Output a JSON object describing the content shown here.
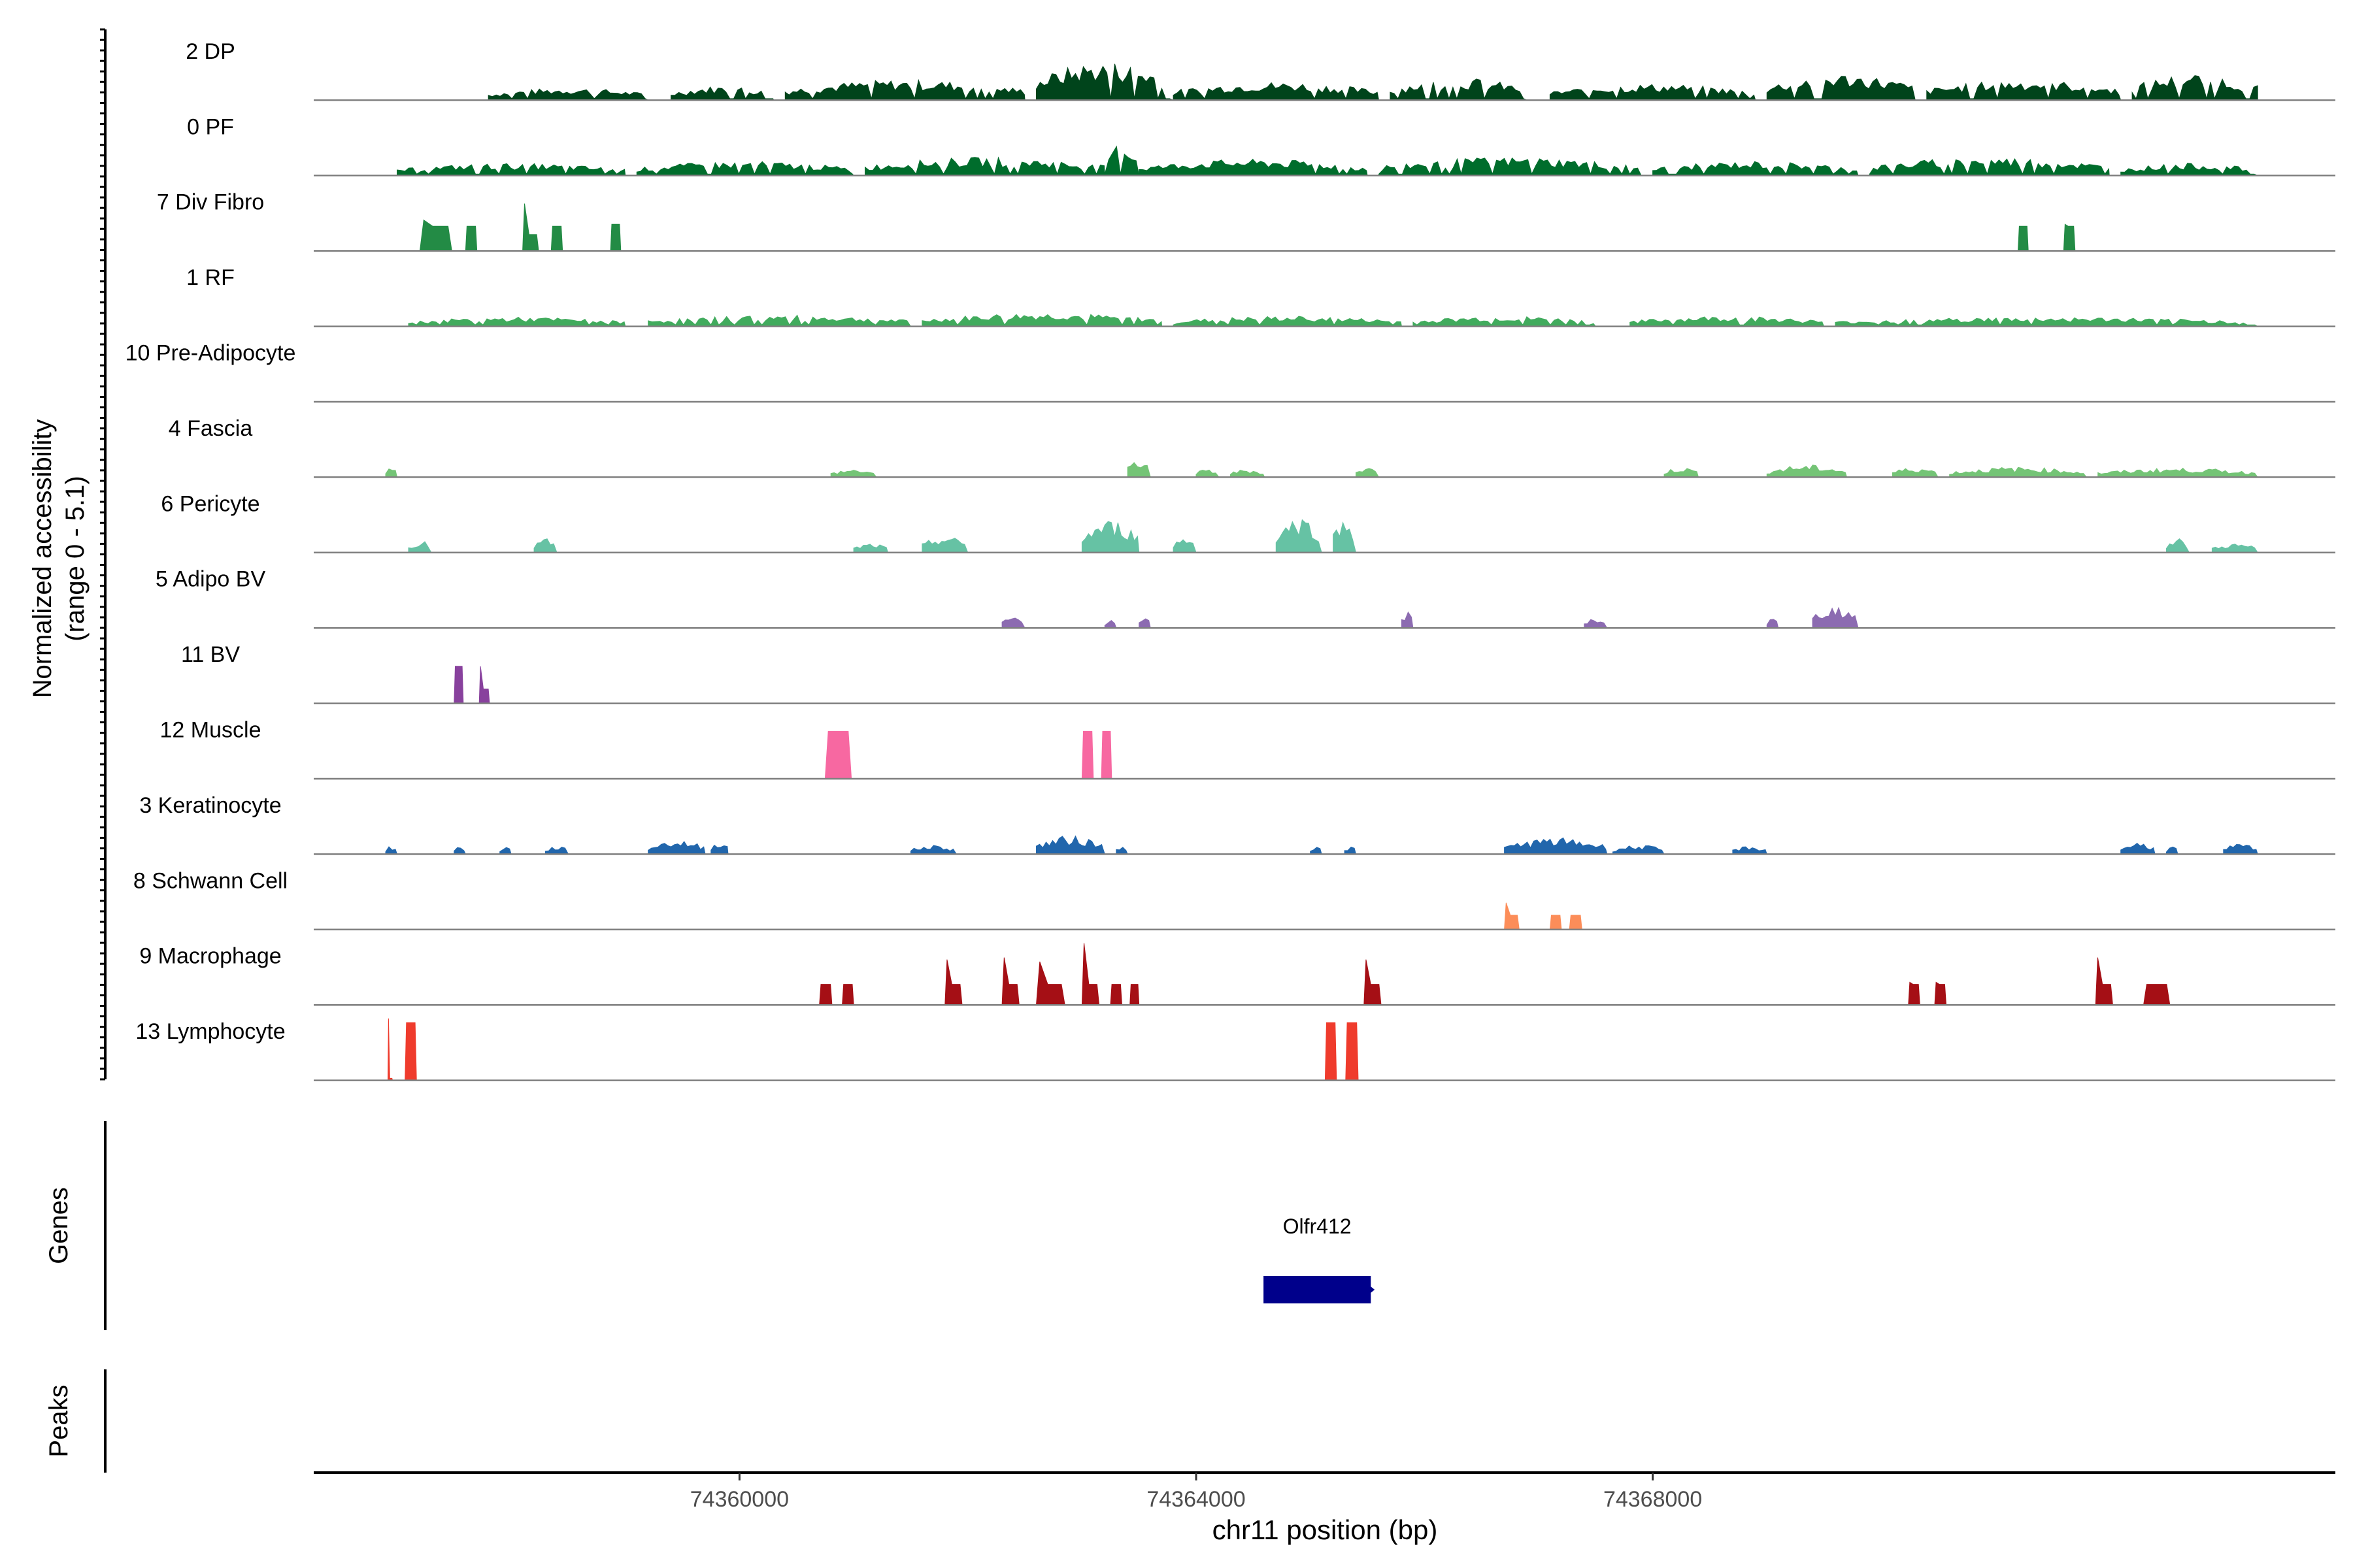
{
  "chart_data": {
    "type": "area",
    "subtype": "coverage-track-plot",
    "xlabel": "chr11 position (bp)",
    "ylabel_line1": "Normalized accessibility",
    "ylabel_line2": "(range 0 - 5.1)",
    "y_range": [
      0,
      5.1
    ],
    "x_range": [
      74356270,
      74373980
    ],
    "x_ticks": [
      {
        "value": 74360000,
        "label": "74360000"
      },
      {
        "value": 74364000,
        "label": "74364000"
      },
      {
        "value": 74368000,
        "label": "74368000"
      }
    ],
    "legend": "none",
    "grid": false,
    "tracks": [
      {
        "name": "2 DP",
        "color": "#00441b",
        "pattern": "dense",
        "regions": [
          [
            74357800,
            74359200,
            1.2
          ],
          [
            74359400,
            74360300,
            1.4
          ],
          [
            74360400,
            74362500,
            2.0
          ],
          [
            74362600,
            74363800,
            3.8
          ],
          [
            74363800,
            74365600,
            1.8
          ],
          [
            74365700,
            74366900,
            2.2
          ],
          [
            74367100,
            74368900,
            1.6
          ],
          [
            74369000,
            74370300,
            2.6
          ],
          [
            74370400,
            74372100,
            2.0
          ],
          [
            74372200,
            74373300,
            2.6
          ]
        ]
      },
      {
        "name": "0 PF",
        "color": "#006d2c",
        "pattern": "dense",
        "regions": [
          [
            74357000,
            74359000,
            1.2
          ],
          [
            74359100,
            74361000,
            1.4
          ],
          [
            74361100,
            74363200,
            1.8
          ],
          [
            74363200,
            74363500,
            3.2
          ],
          [
            74363500,
            74365500,
            1.6
          ],
          [
            74365600,
            74367900,
            1.8
          ],
          [
            74368000,
            74369800,
            1.4
          ],
          [
            74369900,
            74372000,
            1.8
          ],
          [
            74372100,
            74373300,
            1.2
          ]
        ]
      },
      {
        "name": "7 Div Fibro",
        "color": "#238b45",
        "pattern": "blocks",
        "peaks": [
          [
            74357200,
            74357480,
            3.0,
            2.4
          ],
          [
            74357600,
            74357700,
            2.4,
            2.4
          ],
          [
            74358100,
            74358240,
            4.6,
            1.6
          ],
          [
            74358350,
            74358450,
            2.4,
            2.4
          ],
          [
            74358870,
            74358960,
            2.6,
            2.6
          ],
          [
            74371200,
            74371290,
            2.4,
            2.4
          ],
          [
            74371600,
            74371700,
            2.6,
            2.4
          ]
        ]
      },
      {
        "name": "1 RF",
        "color": "#41ab5d",
        "pattern": "dense",
        "regions": [
          [
            74357100,
            74359000,
            0.9
          ],
          [
            74359200,
            74361500,
            1.1
          ],
          [
            74361600,
            74363700,
            1.3
          ],
          [
            74363800,
            74365800,
            1.0
          ],
          [
            74365900,
            74367500,
            1.0
          ],
          [
            74367800,
            74369500,
            1.0
          ],
          [
            74369600,
            74373300,
            0.9
          ]
        ]
      },
      {
        "name": "10 Pre-Adipocyte",
        "color": "#74c476",
        "pattern": "none"
      },
      {
        "name": "4 Fascia",
        "color": "#74c476",
        "pattern": "sparse",
        "regions": [
          [
            74356900,
            74357000,
            1.0
          ],
          [
            74360800,
            74361200,
            0.8
          ],
          [
            74363400,
            74363600,
            1.8
          ],
          [
            74364000,
            74364200,
            0.8
          ],
          [
            74364300,
            74364600,
            0.8
          ],
          [
            74365400,
            74365600,
            1.0
          ],
          [
            74368100,
            74368400,
            1.0
          ],
          [
            74369000,
            74369700,
            1.2
          ],
          [
            74370100,
            74370500,
            1.0
          ],
          [
            74370600,
            74371800,
            1.0
          ],
          [
            74371900,
            74373300,
            0.9
          ]
        ]
      },
      {
        "name": "6 Pericyte",
        "color": "#66c2a4",
        "pattern": "sparse",
        "regions": [
          [
            74357100,
            74357300,
            1.2
          ],
          [
            74358200,
            74358400,
            1.4
          ],
          [
            74361000,
            74361300,
            0.9
          ],
          [
            74361600,
            74362000,
            1.6
          ],
          [
            74363000,
            74363500,
            3.2
          ],
          [
            74363800,
            74364000,
            1.6
          ],
          [
            74364700,
            74365100,
            3.6
          ],
          [
            74365200,
            74365400,
            3.4
          ],
          [
            74372500,
            74372700,
            1.4
          ],
          [
            74372900,
            74373300,
            0.9
          ]
        ]
      },
      {
        "name": "5 Adipo BV",
        "color": "#8c6bb1",
        "pattern": "sparse",
        "regions": [
          [
            74362300,
            74362500,
            1.2
          ],
          [
            74363200,
            74363300,
            1.0
          ],
          [
            74363500,
            74363600,
            1.0
          ],
          [
            74365800,
            74365900,
            1.6
          ],
          [
            74367400,
            74367600,
            1.0
          ],
          [
            74369000,
            74369100,
            1.0
          ],
          [
            74369400,
            74369800,
            2.2
          ]
        ]
      },
      {
        "name": "11 BV",
        "color": "#88419d",
        "pattern": "blocks",
        "peaks": [
          [
            74357500,
            74357580,
            3.6,
            3.6
          ],
          [
            74357720,
            74357810,
            3.6,
            1.4
          ]
        ]
      },
      {
        "name": "12 Muscle",
        "color": "#f768a1",
        "pattern": "blocks",
        "peaks": [
          [
            74360750,
            74360980,
            4.6,
            4.6
          ],
          [
            74363000,
            74363100,
            4.6,
            4.6
          ],
          [
            74363170,
            74363260,
            4.6,
            4.6
          ]
        ]
      },
      {
        "name": "3 Keratinocyte",
        "color": "#2166ac",
        "pattern": "sparse",
        "regions": [
          [
            74356900,
            74357000,
            0.8
          ],
          [
            74357500,
            74357600,
            0.8
          ],
          [
            74357900,
            74358000,
            0.8
          ],
          [
            74358300,
            74358500,
            0.8
          ],
          [
            74359200,
            74359700,
            1.4
          ],
          [
            74359750,
            74359900,
            1.4
          ],
          [
            74361500,
            74361900,
            0.9
          ],
          [
            74362600,
            74363200,
            1.8
          ],
          [
            74363300,
            74363400,
            1.0
          ],
          [
            74365000,
            74365100,
            0.8
          ],
          [
            74365300,
            74365400,
            0.8
          ],
          [
            74366700,
            74367600,
            1.6
          ],
          [
            74367650,
            74368100,
            0.9
          ],
          [
            74368700,
            74369000,
            0.8
          ],
          [
            74372100,
            74372400,
            1.2
          ],
          [
            74372500,
            74372600,
            0.8
          ],
          [
            74373000,
            74373300,
            1.0
          ]
        ]
      },
      {
        "name": "8 Schwann Cell",
        "color": "#fc8d59",
        "pattern": "blocks",
        "peaks": [
          [
            74366700,
            74366830,
            2.6,
            1.4
          ],
          [
            74367100,
            74367200,
            1.4,
            1.4
          ],
          [
            74367270,
            74367380,
            1.4,
            1.4
          ]
        ]
      },
      {
        "name": "9 Macrophage",
        "color": "#a50f15",
        "pattern": "blocks",
        "peaks": [
          [
            74360700,
            74360810,
            2.0,
            2.0
          ],
          [
            74360900,
            74361000,
            2.0,
            2.0
          ],
          [
            74361800,
            74361950,
            4.4,
            2.0
          ],
          [
            74362300,
            74362450,
            4.6,
            2.0
          ],
          [
            74362600,
            74362850,
            4.2,
            2.0
          ],
          [
            74363000,
            74363150,
            6.0,
            2.0
          ],
          [
            74363250,
            74363350,
            2.0,
            2.0
          ],
          [
            74363420,
            74363500,
            2.0,
            2.0
          ],
          [
            74365470,
            74365620,
            4.4,
            2.0
          ],
          [
            74370240,
            74370340,
            2.2,
            2.0
          ],
          [
            74370470,
            74370570,
            2.2,
            2.0
          ],
          [
            74371880,
            74372030,
            4.6,
            2.0
          ],
          [
            74372300,
            74372530,
            2.0,
            2.0
          ]
        ]
      },
      {
        "name": "13 Lymphocyte",
        "color": "#ef3b2c",
        "pattern": "blocks",
        "peaks": [
          [
            74356920,
            74356960,
            6.0,
            0.2
          ],
          [
            74357070,
            74357170,
            5.6,
            5.6
          ],
          [
            74365130,
            74365230,
            5.6,
            5.6
          ],
          [
            74365310,
            74365420,
            5.6,
            5.6
          ]
        ]
      }
    ],
    "genes_label": "Genes",
    "peaks_label": "Peaks",
    "genes": [
      {
        "name": "Olfr412",
        "start": 74364590,
        "end": 74365530,
        "strand": "+",
        "color": "#00008b"
      }
    ]
  }
}
